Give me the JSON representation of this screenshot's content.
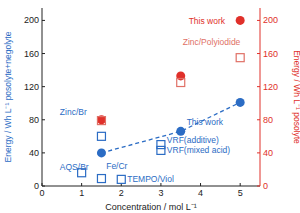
{
  "chart_data": {
    "type": "scatter",
    "x_label": "Concentration / mol L⁻¹",
    "y_label": "Energy / Wh L⁻¹ posolyte+negolyte",
    "y2_label": "Energy / Wh L⁻¹ posolyte",
    "xlim": [
      0,
      5.5
    ],
    "xticks": [
      0,
      1,
      2,
      3,
      4,
      5
    ],
    "ylim": [
      0,
      215
    ],
    "yticks": [
      0,
      40,
      80,
      120,
      160,
      200
    ],
    "y2lim": [
      0,
      215
    ],
    "y2ticks": [
      0,
      40,
      80,
      120,
      160,
      200
    ],
    "grid": false,
    "series": [
      {
        "color": "#2b6cc4",
        "marker": "circle",
        "line_style": "dashed",
        "axis": "y",
        "x": [
          1.5,
          3.5,
          5
        ],
        "values": [
          40,
          66,
          101
        ]
      },
      {
        "color": "#2b6cc4",
        "marker": "square-open",
        "axis": "y",
        "x": [
          1,
          1.5,
          2,
          3,
          3,
          1.5
        ],
        "values": [
          16,
          9,
          8,
          50,
          43,
          60
        ]
      },
      {
        "color": "#e0302a",
        "marker": "circle",
        "axis": "y2",
        "x": [
          1.5,
          3.5,
          5
        ],
        "values": [
          80,
          133,
          200
        ]
      },
      {
        "color": "#e07066",
        "marker": "square-open",
        "axis": "y2",
        "x": [
          1.5,
          3.5,
          5
        ],
        "values": [
          79,
          125,
          155
        ]
      }
    ],
    "annotations": [
      {
        "text": "This work",
        "x": 3.65,
        "y": 74,
        "axis": "y",
        "color": "#2b6cc4"
      },
      {
        "text": "AQS/Br",
        "x": 0.45,
        "y": 19,
        "axis": "y",
        "color": "#2b6cc4"
      },
      {
        "text": "Fe/Cr",
        "x": 1.62,
        "y": 20,
        "axis": "y",
        "color": "#2b6cc4"
      },
      {
        "text": "TEMPO/Viol",
        "x": 2.15,
        "y": 5,
        "axis": "y",
        "color": "#2b6cc4"
      },
      {
        "text": "VRF(additive)",
        "x": 3.15,
        "y": 52,
        "axis": "y",
        "color": "#2b6cc4"
      },
      {
        "text": "VRF(mixed acid)",
        "x": 3.15,
        "y": 40,
        "axis": "y",
        "color": "#2b6cc4"
      },
      {
        "text": "Zinc/Br",
        "x": 0.45,
        "y": 86,
        "axis": "y",
        "color": "#2b6cc4"
      },
      {
        "text": "This work",
        "x": 3.7,
        "y": 196,
        "axis": "y2",
        "color": "#e0302a"
      },
      {
        "text": "Zinc/Polyiodide",
        "x": 3.55,
        "y": 170,
        "axis": "y2",
        "color": "#e07066"
      }
    ]
  }
}
